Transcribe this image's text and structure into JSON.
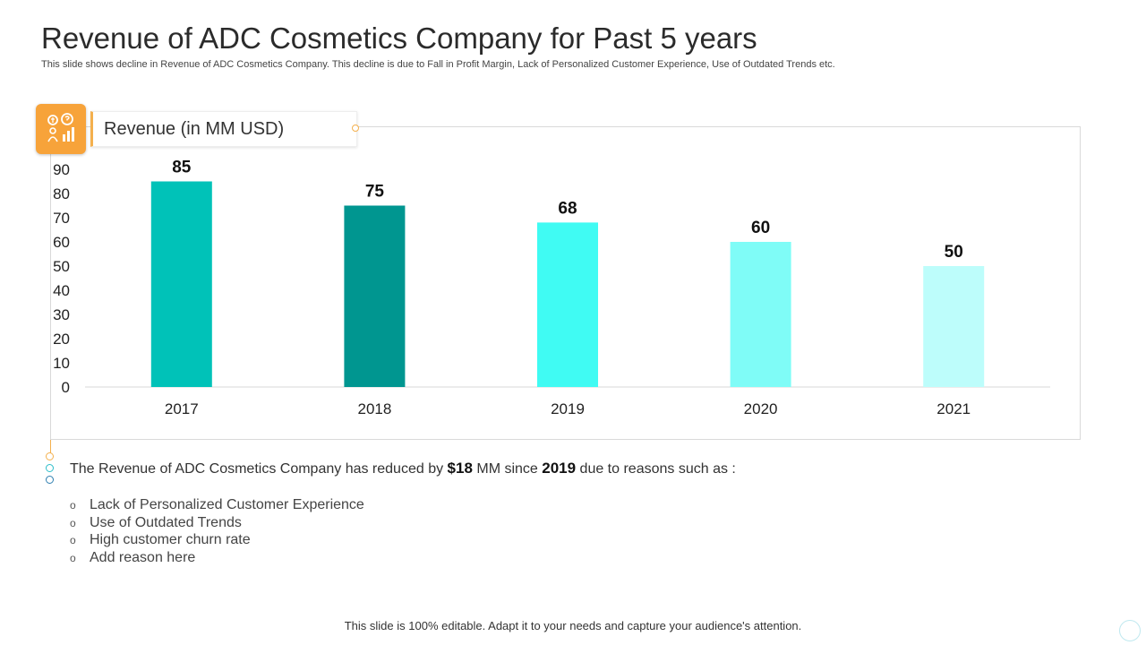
{
  "slide": {
    "title": "Revenue of ADC Cosmetics Company for Past 5 years",
    "subtitle": "This slide shows decline in Revenue of ADC Cosmetics Company.  This decline is due  to Fall in Profit Margin, Lack of Personalized Customer Experience, Use of Outdated Trends etc.",
    "footer": "This slide is 100% editable. Adapt it to your needs and capture your audience's attention."
  },
  "legend": {
    "label": "Revenue (in MM USD)",
    "icon": "revenue-growth-icon"
  },
  "summary": {
    "prefix": "The Revenue of ADC Cosmetics Company has reduced by ",
    "amount": "$18",
    "middle": " MM since ",
    "year": "2019",
    "suffix": " due to reasons such as :"
  },
  "reasons": [
    "Lack of Personalized Customer Experience",
    "Use of Outdated Trends",
    "High customer churn rate",
    "Add reason here"
  ],
  "bullet_glyph": "o",
  "colors": {
    "accent_orange": "#f7a33a",
    "bars": [
      "#00c2b8",
      "#009690",
      "#40fbf3",
      "#7ffcf7",
      "#bdfdfb"
    ]
  },
  "chart_data": {
    "type": "bar",
    "categories": [
      "2017",
      "2018",
      "2019",
      "2020",
      "2021"
    ],
    "values": [
      85,
      75,
      68,
      60,
      50
    ],
    "ylim": [
      0,
      90
    ],
    "yticks": [
      0,
      10,
      20,
      30,
      40,
      50,
      60,
      70,
      80,
      90
    ],
    "series_name": "Revenue (in MM USD)",
    "data_labels": true,
    "grid": false
  }
}
